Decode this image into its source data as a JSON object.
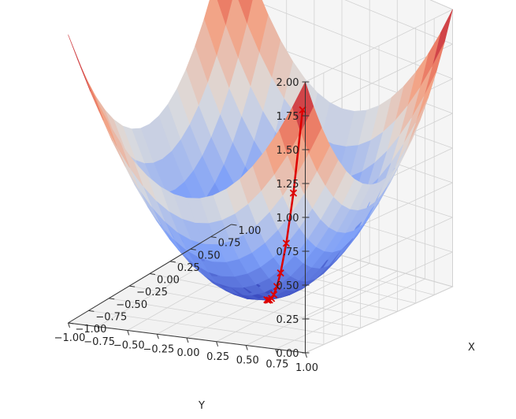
{
  "chart_data": {
    "type": "surface3d",
    "surface_function": "z = x^2 + y^2",
    "colormap": "coolwarm",
    "grid": true,
    "axes": {
      "x": {
        "label": "X",
        "range": [
          -1.0,
          1.0
        ],
        "ticks": [
          "−1.00",
          "−0.75",
          "−0.50",
          "−0.25",
          "0.00",
          "0.25",
          "0.50",
          "0.75",
          "1.00"
        ]
      },
      "y": {
        "label": "Y",
        "range": [
          -1.0,
          1.0
        ],
        "ticks": [
          "1.00",
          "0.75",
          "0.50",
          "0.25",
          "0.00",
          "−0.25",
          "−0.50",
          "−0.75",
          "−1.00"
        ]
      },
      "z": {
        "label": "",
        "range": [
          0.0,
          2.0
        ],
        "ticks": [
          "0.00",
          "0.25",
          "0.50",
          "0.75",
          "1.00",
          "1.25",
          "1.50",
          "1.75",
          "2.00"
        ]
      }
    },
    "path": {
      "color": "#dd0000",
      "marker": "x",
      "points": [
        {
          "x": -0.94,
          "y": 0.94
        },
        {
          "x": -0.73,
          "y": 0.73
        },
        {
          "x": -0.56,
          "y": 0.56
        },
        {
          "x": -0.42,
          "y": 0.42
        },
        {
          "x": -0.33,
          "y": 0.33
        },
        {
          "x": -0.25,
          "y": 0.25
        },
        {
          "x": -0.19,
          "y": 0.19
        },
        {
          "x": -0.14,
          "y": 0.14
        },
        {
          "x": -0.1,
          "y": 0.1
        },
        {
          "x": -0.07,
          "y": 0.07
        }
      ]
    }
  }
}
